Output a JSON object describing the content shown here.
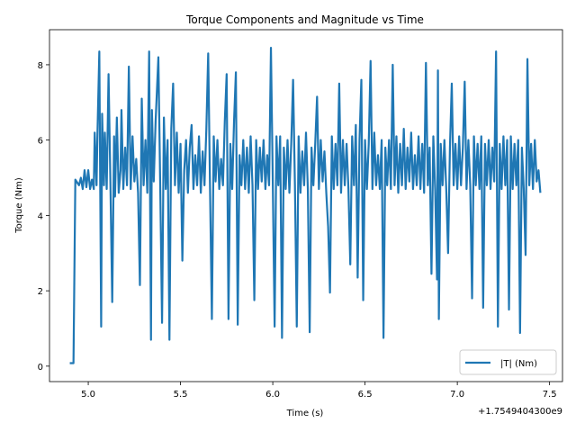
{
  "chart_data": {
    "type": "line",
    "title": "Torque Components and Magnitude vs Time",
    "x_label": "Time (s)",
    "y_label": "Torque (Nm)",
    "x_offset": "+1.7549404300e9",
    "xlim": [
      4.79,
      7.57
    ],
    "ylim": [
      -0.41,
      8.93
    ],
    "xticks": [
      {
        "value": 5,
        "label": "5.0"
      },
      {
        "value": 5.5,
        "label": "5.5"
      },
      {
        "value": 6,
        "label": "6.0"
      },
      {
        "value": 6.5,
        "label": "6.5"
      },
      {
        "value": 7,
        "label": "7.0"
      },
      {
        "value": 7.5,
        "label": "7.5"
      }
    ],
    "yticks": [
      0,
      2,
      4,
      6,
      8
    ],
    "legend": "lower right",
    "x": [
      4.9,
      4.92,
      4.93,
      4.95,
      4.96,
      4.97,
      4.98,
      4.99,
      5.0,
      5.01,
      5.02,
      5.03,
      5.035,
      5.045,
      5.05,
      5.06,
      5.065,
      5.07,
      5.075,
      5.085,
      5.09,
      5.1,
      5.11,
      5.12,
      5.13,
      5.14,
      5.145,
      5.155,
      5.165,
      5.175,
      5.18,
      5.19,
      5.2,
      5.21,
      5.22,
      5.23,
      5.24,
      5.25,
      5.26,
      5.27,
      5.28,
      5.29,
      5.3,
      5.31,
      5.32,
      5.33,
      5.34,
      5.345,
      5.355,
      5.365,
      5.38,
      5.39,
      5.4,
      5.41,
      5.42,
      5.43,
      5.44,
      5.45,
      5.46,
      5.47,
      5.48,
      5.49,
      5.5,
      5.51,
      5.52,
      5.53,
      5.54,
      5.55,
      5.56,
      5.57,
      5.58,
      5.59,
      5.6,
      5.61,
      5.62,
      5.63,
      5.64,
      5.65,
      5.66,
      5.67,
      5.68,
      5.69,
      5.7,
      5.71,
      5.72,
      5.73,
      5.74,
      5.75,
      5.76,
      5.77,
      5.78,
      5.79,
      5.8,
      5.81,
      5.82,
      5.83,
      5.84,
      5.85,
      5.86,
      5.87,
      5.88,
      5.89,
      5.9,
      5.91,
      5.92,
      5.93,
      5.94,
      5.95,
      5.96,
      5.97,
      5.98,
      5.99,
      6.0,
      6.01,
      6.02,
      6.03,
      6.04,
      6.05,
      6.06,
      6.07,
      6.08,
      6.09,
      6.1,
      6.11,
      6.12,
      6.13,
      6.14,
      6.15,
      6.16,
      6.17,
      6.18,
      6.19,
      6.2,
      6.21,
      6.22,
      6.23,
      6.24,
      6.25,
      6.26,
      6.27,
      6.28,
      6.29,
      6.3,
      6.31,
      6.32,
      6.33,
      6.34,
      6.35,
      6.36,
      6.37,
      6.38,
      6.39,
      6.4,
      6.41,
      6.42,
      6.43,
      6.44,
      6.45,
      6.46,
      6.47,
      6.48,
      6.49,
      6.5,
      6.51,
      6.52,
      6.53,
      6.54,
      6.55,
      6.56,
      6.57,
      6.58,
      6.59,
      6.6,
      6.61,
      6.62,
      6.63,
      6.64,
      6.65,
      6.66,
      6.67,
      6.68,
      6.69,
      6.7,
      6.71,
      6.72,
      6.73,
      6.74,
      6.75,
      6.76,
      6.77,
      6.78,
      6.79,
      6.8,
      6.81,
      6.82,
      6.83,
      6.84,
      6.85,
      6.86,
      6.87,
      6.88,
      6.89,
      6.895,
      6.9,
      6.91,
      6.92,
      6.93,
      6.94,
      6.95,
      6.96,
      6.97,
      6.98,
      6.99,
      7.0,
      7.01,
      7.02,
      7.03,
      7.04,
      7.05,
      7.06,
      7.07,
      7.08,
      7.09,
      7.1,
      7.11,
      7.12,
      7.13,
      7.14,
      7.15,
      7.16,
      7.17,
      7.18,
      7.19,
      7.2,
      7.21,
      7.22,
      7.23,
      7.24,
      7.25,
      7.26,
      7.27,
      7.28,
      7.29,
      7.3,
      7.31,
      7.32,
      7.33,
      7.34,
      7.35,
      7.36,
      7.37,
      7.38,
      7.39,
      7.4,
      7.41,
      7.42,
      7.43,
      7.44,
      7.45
    ],
    "series": [
      {
        "name": "|T| (Nm)",
        "color": "#1f77b4",
        "values": [
          0.08,
          0.08,
          4.95,
          4.8,
          5.0,
          4.7,
          5.2,
          4.75,
          5.2,
          4.7,
          4.95,
          4.7,
          6.2,
          4.8,
          6.2,
          8.35,
          4.7,
          1.05,
          6.7,
          4.8,
          6.2,
          4.7,
          7.75,
          4.9,
          1.7,
          6.1,
          4.5,
          6.6,
          4.6,
          5.2,
          6.8,
          4.7,
          5.8,
          4.8,
          7.95,
          4.7,
          6.1,
          4.9,
          5.5,
          4.6,
          2.15,
          7.1,
          4.8,
          6.0,
          4.6,
          8.35,
          0.7,
          6.8,
          4.9,
          6.5,
          8.2,
          4.8,
          1.15,
          6.6,
          4.7,
          6.0,
          0.7,
          6.3,
          7.5,
          4.8,
          6.2,
          4.6,
          5.9,
          2.8,
          5.2,
          6.0,
          4.6,
          5.8,
          6.4,
          4.7,
          5.6,
          4.8,
          6.1,
          4.6,
          5.7,
          4.8,
          6.3,
          8.3,
          4.7,
          1.25,
          6.1,
          4.9,
          6.0,
          4.7,
          5.5,
          4.8,
          6.5,
          7.75,
          1.25,
          5.9,
          4.7,
          6.5,
          7.8,
          1.1,
          5.6,
          4.8,
          6.0,
          4.7,
          5.8,
          4.6,
          6.1,
          4.8,
          1.75,
          6.0,
          4.7,
          5.8,
          4.9,
          6.0,
          4.7,
          5.6,
          4.8,
          8.45,
          4.9,
          1.05,
          6.1,
          4.8,
          6.1,
          0.75,
          5.8,
          4.7,
          6.0,
          4.6,
          5.9,
          7.6,
          4.8,
          1.05,
          6.1,
          4.6,
          5.7,
          4.8,
          6.2,
          4.7,
          0.9,
          5.8,
          4.8,
          5.9,
          7.15,
          4.7,
          6.0,
          4.9,
          5.7,
          4.6,
          3.7,
          1.95,
          6.1,
          4.7,
          5.9,
          4.8,
          7.5,
          4.6,
          6.0,
          4.8,
          5.9,
          4.7,
          2.7,
          6.1,
          4.8,
          6.4,
          2.35,
          6.0,
          7.6,
          1.75,
          6.0,
          4.7,
          5.9,
          8.1,
          4.7,
          6.2,
          4.8,
          5.6,
          4.7,
          6.0,
          0.75,
          5.8,
          4.8,
          6.0,
          4.7,
          8.0,
          4.8,
          6.1,
          4.6,
          5.9,
          4.8,
          6.3,
          4.7,
          5.8,
          4.9,
          6.2,
          4.7,
          5.6,
          4.8,
          6.1,
          4.7,
          5.9,
          4.6,
          8.05,
          4.8,
          5.8,
          2.45,
          6.1,
          4.7,
          2.3,
          7.85,
          1.25,
          5.9,
          4.8,
          6.0,
          4.7,
          3.0,
          5.8,
          7.5,
          4.8,
          5.9,
          4.7,
          6.1,
          4.8,
          5.8,
          7.55,
          4.7,
          6.0,
          4.8,
          1.8,
          6.1,
          4.8,
          5.9,
          4.7,
          6.1,
          1.55,
          5.9,
          4.8,
          6.0,
          4.7,
          5.8,
          4.9,
          8.35,
          1.05,
          5.9,
          4.7,
          6.1,
          4.8,
          6.0,
          1.5,
          6.1,
          4.7,
          5.9,
          4.8,
          6.0,
          0.88,
          5.8,
          4.7,
          2.95,
          8.15,
          4.8,
          5.9,
          4.7,
          6.0,
          4.9,
          5.2,
          4.6
        ]
      }
    ]
  }
}
